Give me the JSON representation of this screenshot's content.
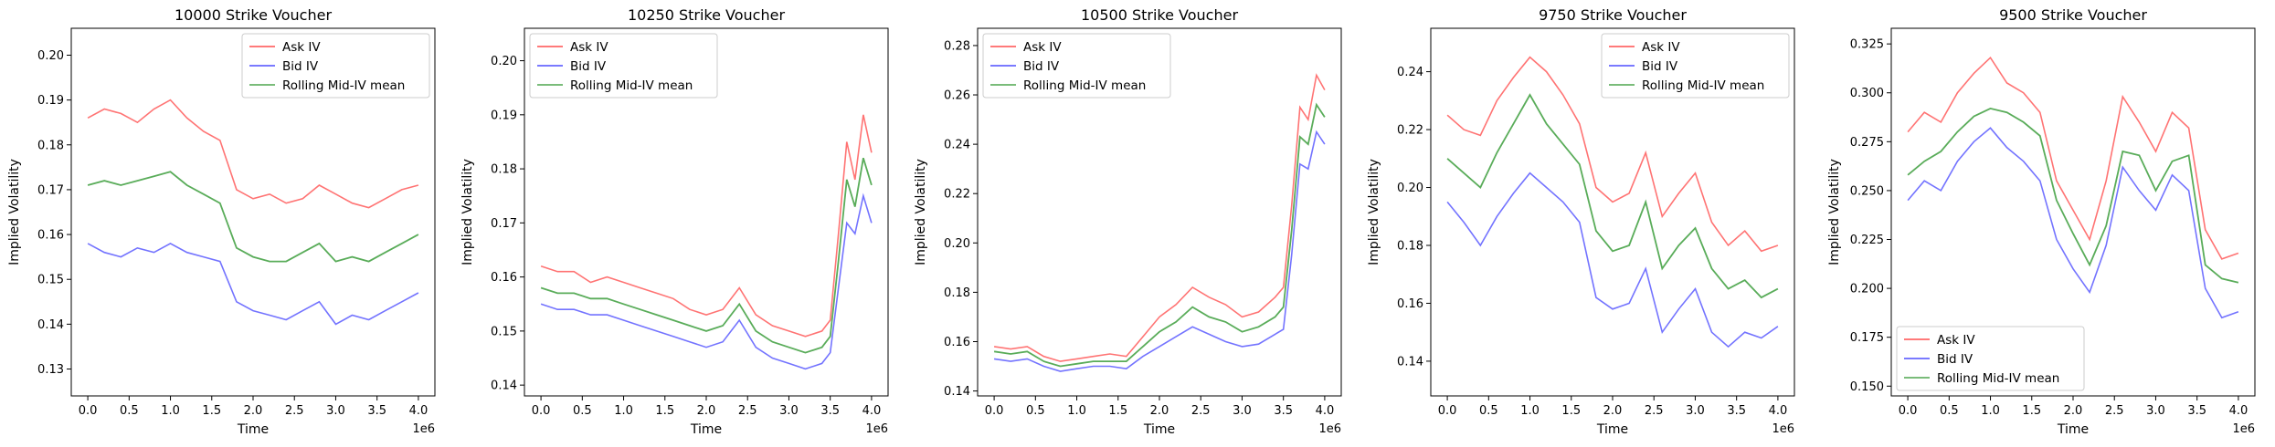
{
  "chart_data": [
    {
      "type": "line",
      "title": "10000 Strike Voucher",
      "xlabel": "Time",
      "ylabel": "Implied Volatility",
      "x_offset_label": "1e6",
      "xlim": [
        -0.2,
        4.2
      ],
      "ylim": [
        0.124,
        0.206
      ],
      "xticks": [
        0.0,
        0.5,
        1.0,
        1.5,
        2.0,
        2.5,
        3.0,
        3.5,
        4.0
      ],
      "xtick_labels": [
        "0.0",
        "0.5",
        "1.0",
        "1.5",
        "2.0",
        "2.5",
        "3.0",
        "3.5",
        "4.0"
      ],
      "yticks": [
        0.13,
        0.14,
        0.15,
        0.16,
        0.17,
        0.18,
        0.19,
        0.2
      ],
      "ytick_labels": [
        "0.13",
        "0.14",
        "0.15",
        "0.16",
        "0.17",
        "0.18",
        "0.19",
        "0.20"
      ],
      "legend_position": "top-right",
      "series": [
        {
          "name": "Ask IV",
          "color": "#ff0000",
          "x": [
            0.0,
            0.2,
            0.4,
            0.6,
            0.8,
            1.0,
            1.2,
            1.4,
            1.6,
            1.8,
            2.0,
            2.2,
            2.4,
            2.6,
            2.8,
            3.0,
            3.2,
            3.4,
            3.6,
            3.8,
            4.0
          ],
          "values": [
            0.186,
            0.188,
            0.187,
            0.185,
            0.188,
            0.19,
            0.186,
            0.183,
            0.181,
            0.17,
            0.168,
            0.169,
            0.167,
            0.168,
            0.171,
            0.169,
            0.167,
            0.166,
            0.168,
            0.17,
            0.171
          ]
        },
        {
          "name": "Bid IV",
          "color": "#0000ff",
          "x": [
            0.0,
            0.2,
            0.4,
            0.6,
            0.8,
            1.0,
            1.2,
            1.4,
            1.6,
            1.8,
            2.0,
            2.2,
            2.4,
            2.6,
            2.8,
            3.0,
            3.2,
            3.4,
            3.6,
            3.8,
            4.0
          ],
          "values": [
            0.158,
            0.156,
            0.155,
            0.157,
            0.156,
            0.158,
            0.156,
            0.155,
            0.154,
            0.145,
            0.143,
            0.142,
            0.141,
            0.143,
            0.145,
            0.14,
            0.142,
            0.141,
            0.143,
            0.145,
            0.147
          ]
        },
        {
          "name": "Rolling Mid-IV mean",
          "color": "#008000",
          "x": [
            0.0,
            0.2,
            0.4,
            0.6,
            0.8,
            1.0,
            1.2,
            1.4,
            1.6,
            1.8,
            2.0,
            2.2,
            2.4,
            2.6,
            2.8,
            3.0,
            3.2,
            3.4,
            3.6,
            3.8,
            4.0
          ],
          "values": [
            0.171,
            0.172,
            0.171,
            0.172,
            0.173,
            0.174,
            0.171,
            0.169,
            0.167,
            0.157,
            0.155,
            0.154,
            0.154,
            0.156,
            0.158,
            0.154,
            0.155,
            0.154,
            0.156,
            0.158,
            0.16
          ]
        }
      ]
    },
    {
      "type": "line",
      "title": "10250 Strike Voucher",
      "xlabel": "Time",
      "ylabel": "Implied Volatility",
      "x_offset_label": "1e6",
      "xlim": [
        -0.2,
        4.2
      ],
      "ylim": [
        0.138,
        0.206
      ],
      "xticks": [
        0.0,
        0.5,
        1.0,
        1.5,
        2.0,
        2.5,
        3.0,
        3.5,
        4.0
      ],
      "xtick_labels": [
        "0.0",
        "0.5",
        "1.0",
        "1.5",
        "2.0",
        "2.5",
        "3.0",
        "3.5",
        "4.0"
      ],
      "yticks": [
        0.14,
        0.15,
        0.16,
        0.17,
        0.18,
        0.19,
        0.2
      ],
      "ytick_labels": [
        "0.14",
        "0.15",
        "0.16",
        "0.17",
        "0.18",
        "0.19",
        "0.20"
      ],
      "legend_position": "top-left",
      "series": [
        {
          "name": "Ask IV",
          "color": "#ff0000",
          "x": [
            0.0,
            0.2,
            0.4,
            0.6,
            0.8,
            1.0,
            1.2,
            1.4,
            1.6,
            1.8,
            2.0,
            2.2,
            2.4,
            2.6,
            2.8,
            3.0,
            3.2,
            3.4,
            3.5,
            3.6,
            3.7,
            3.8,
            3.9,
            4.0
          ],
          "values": [
            0.162,
            0.161,
            0.161,
            0.159,
            0.16,
            0.159,
            0.158,
            0.157,
            0.156,
            0.154,
            0.153,
            0.154,
            0.158,
            0.153,
            0.151,
            0.15,
            0.149,
            0.15,
            0.152,
            0.168,
            0.185,
            0.178,
            0.19,
            0.183
          ]
        },
        {
          "name": "Bid IV",
          "color": "#0000ff",
          "x": [
            0.0,
            0.2,
            0.4,
            0.6,
            0.8,
            1.0,
            1.2,
            1.4,
            1.6,
            1.8,
            2.0,
            2.2,
            2.4,
            2.6,
            2.8,
            3.0,
            3.2,
            3.4,
            3.5,
            3.6,
            3.7,
            3.8,
            3.9,
            4.0
          ],
          "values": [
            0.155,
            0.154,
            0.154,
            0.153,
            0.153,
            0.152,
            0.151,
            0.15,
            0.149,
            0.148,
            0.147,
            0.148,
            0.152,
            0.147,
            0.145,
            0.144,
            0.143,
            0.144,
            0.146,
            0.158,
            0.17,
            0.168,
            0.175,
            0.17
          ]
        },
        {
          "name": "Rolling Mid-IV mean",
          "color": "#008000",
          "x": [
            0.0,
            0.2,
            0.4,
            0.6,
            0.8,
            1.0,
            1.2,
            1.4,
            1.6,
            1.8,
            2.0,
            2.2,
            2.4,
            2.6,
            2.8,
            3.0,
            3.2,
            3.4,
            3.5,
            3.6,
            3.7,
            3.8,
            3.9,
            4.0
          ],
          "values": [
            0.158,
            0.157,
            0.157,
            0.156,
            0.156,
            0.155,
            0.154,
            0.153,
            0.152,
            0.151,
            0.15,
            0.151,
            0.155,
            0.15,
            0.148,
            0.147,
            0.146,
            0.147,
            0.149,
            0.163,
            0.178,
            0.173,
            0.182,
            0.177
          ]
        }
      ]
    },
    {
      "type": "line",
      "title": "10500 Strike Voucher",
      "xlabel": "Time",
      "ylabel": "Implied Volatility",
      "x_offset_label": "1e6",
      "xlim": [
        -0.2,
        4.2
      ],
      "ylim": [
        0.138,
        0.287
      ],
      "xticks": [
        0.0,
        0.5,
        1.0,
        1.5,
        2.0,
        2.5,
        3.0,
        3.5,
        4.0
      ],
      "xtick_labels": [
        "0.0",
        "0.5",
        "1.0",
        "1.5",
        "2.0",
        "2.5",
        "3.0",
        "3.5",
        "4.0"
      ],
      "yticks": [
        0.14,
        0.16,
        0.18,
        0.2,
        0.22,
        0.24,
        0.26,
        0.28
      ],
      "ytick_labels": [
        "0.14",
        "0.16",
        "0.18",
        "0.20",
        "0.22",
        "0.24",
        "0.26",
        "0.28"
      ],
      "legend_position": "top-left",
      "series": [
        {
          "name": "Ask IV",
          "color": "#ff0000",
          "x": [
            0.0,
            0.2,
            0.4,
            0.6,
            0.8,
            1.0,
            1.2,
            1.4,
            1.6,
            1.8,
            2.0,
            2.2,
            2.4,
            2.6,
            2.8,
            3.0,
            3.2,
            3.4,
            3.5,
            3.6,
            3.7,
            3.8,
            3.9,
            4.0
          ],
          "values": [
            0.158,
            0.157,
            0.158,
            0.154,
            0.152,
            0.153,
            0.154,
            0.155,
            0.154,
            0.162,
            0.17,
            0.175,
            0.182,
            0.178,
            0.175,
            0.17,
            0.172,
            0.178,
            0.182,
            0.215,
            0.255,
            0.25,
            0.268,
            0.262
          ]
        },
        {
          "name": "Bid IV",
          "color": "#0000ff",
          "x": [
            0.0,
            0.2,
            0.4,
            0.6,
            0.8,
            1.0,
            1.2,
            1.4,
            1.6,
            1.8,
            2.0,
            2.2,
            2.4,
            2.6,
            2.8,
            3.0,
            3.2,
            3.4,
            3.5,
            3.6,
            3.7,
            3.8,
            3.9,
            4.0
          ],
          "values": [
            0.153,
            0.152,
            0.153,
            0.15,
            0.148,
            0.149,
            0.15,
            0.15,
            0.149,
            0.154,
            0.158,
            0.162,
            0.166,
            0.163,
            0.16,
            0.158,
            0.159,
            0.163,
            0.165,
            0.195,
            0.232,
            0.23,
            0.245,
            0.24
          ]
        },
        {
          "name": "Rolling Mid-IV mean",
          "color": "#008000",
          "x": [
            0.0,
            0.2,
            0.4,
            0.6,
            0.8,
            1.0,
            1.2,
            1.4,
            1.6,
            1.8,
            2.0,
            2.2,
            2.4,
            2.6,
            2.8,
            3.0,
            3.2,
            3.4,
            3.5,
            3.6,
            3.7,
            3.8,
            3.9,
            4.0
          ],
          "values": [
            0.156,
            0.155,
            0.156,
            0.152,
            0.15,
            0.151,
            0.152,
            0.152,
            0.152,
            0.158,
            0.164,
            0.168,
            0.174,
            0.17,
            0.168,
            0.164,
            0.166,
            0.17,
            0.174,
            0.205,
            0.243,
            0.24,
            0.256,
            0.251
          ]
        }
      ]
    },
    {
      "type": "line",
      "title": "9750 Strike Voucher",
      "xlabel": "Time",
      "ylabel": "Implied Volatility",
      "x_offset_label": "1e6",
      "xlim": [
        -0.2,
        4.2
      ],
      "ylim": [
        0.128,
        0.255
      ],
      "xticks": [
        0.0,
        0.5,
        1.0,
        1.5,
        2.0,
        2.5,
        3.0,
        3.5,
        4.0
      ],
      "xtick_labels": [
        "0.0",
        "0.5",
        "1.0",
        "1.5",
        "2.0",
        "2.5",
        "3.0",
        "3.5",
        "4.0"
      ],
      "yticks": [
        0.14,
        0.16,
        0.18,
        0.2,
        0.22,
        0.24
      ],
      "ytick_labels": [
        "0.14",
        "0.16",
        "0.18",
        "0.20",
        "0.22",
        "0.24"
      ],
      "legend_position": "top-right",
      "series": [
        {
          "name": "Ask IV",
          "color": "#ff0000",
          "x": [
            0.0,
            0.2,
            0.4,
            0.6,
            0.8,
            1.0,
            1.2,
            1.4,
            1.6,
            1.8,
            2.0,
            2.2,
            2.4,
            2.6,
            2.8,
            3.0,
            3.2,
            3.4,
            3.6,
            3.8,
            4.0
          ],
          "values": [
            0.225,
            0.22,
            0.218,
            0.23,
            0.238,
            0.245,
            0.24,
            0.232,
            0.222,
            0.2,
            0.195,
            0.198,
            0.212,
            0.19,
            0.198,
            0.205,
            0.188,
            0.18,
            0.185,
            0.178,
            0.18
          ]
        },
        {
          "name": "Bid IV",
          "color": "#0000ff",
          "x": [
            0.0,
            0.2,
            0.4,
            0.6,
            0.8,
            1.0,
            1.2,
            1.4,
            1.6,
            1.8,
            2.0,
            2.2,
            2.4,
            2.6,
            2.8,
            3.0,
            3.2,
            3.4,
            3.6,
            3.8,
            4.0
          ],
          "values": [
            0.195,
            0.188,
            0.18,
            0.19,
            0.198,
            0.205,
            0.2,
            0.195,
            0.188,
            0.162,
            0.158,
            0.16,
            0.172,
            0.15,
            0.158,
            0.165,
            0.15,
            0.145,
            0.15,
            0.148,
            0.152
          ]
        },
        {
          "name": "Rolling Mid-IV mean",
          "color": "#008000",
          "x": [
            0.0,
            0.2,
            0.4,
            0.6,
            0.8,
            1.0,
            1.2,
            1.4,
            1.6,
            1.8,
            2.0,
            2.2,
            2.4,
            2.6,
            2.8,
            3.0,
            3.2,
            3.4,
            3.6,
            3.8,
            4.0
          ],
          "values": [
            0.21,
            0.205,
            0.2,
            0.212,
            0.222,
            0.232,
            0.222,
            0.215,
            0.208,
            0.185,
            0.178,
            0.18,
            0.195,
            0.172,
            0.18,
            0.186,
            0.172,
            0.165,
            0.168,
            0.162,
            0.165
          ]
        }
      ]
    },
    {
      "type": "line",
      "title": "9500 Strike Voucher",
      "xlabel": "Time",
      "ylabel": "Implied Volatility",
      "x_offset_label": "1e6",
      "xlim": [
        -0.2,
        4.2
      ],
      "ylim": [
        0.145,
        0.333
      ],
      "xticks": [
        0.0,
        0.5,
        1.0,
        1.5,
        2.0,
        2.5,
        3.0,
        3.5,
        4.0
      ],
      "xtick_labels": [
        "0.0",
        "0.5",
        "1.0",
        "1.5",
        "2.0",
        "2.5",
        "3.0",
        "3.5",
        "4.0"
      ],
      "yticks": [
        0.15,
        0.175,
        0.2,
        0.225,
        0.25,
        0.275,
        0.3,
        0.325
      ],
      "ytick_labels": [
        "0.150",
        "0.175",
        "0.200",
        "0.225",
        "0.250",
        "0.275",
        "0.300",
        "0.325"
      ],
      "legend_position": "bottom-left",
      "series": [
        {
          "name": "Ask IV",
          "color": "#ff0000",
          "x": [
            0.0,
            0.2,
            0.4,
            0.6,
            0.8,
            1.0,
            1.2,
            1.4,
            1.6,
            1.8,
            2.0,
            2.2,
            2.4,
            2.6,
            2.8,
            3.0,
            3.2,
            3.4,
            3.6,
            3.8,
            4.0
          ],
          "values": [
            0.28,
            0.29,
            0.285,
            0.3,
            0.31,
            0.318,
            0.305,
            0.3,
            0.29,
            0.255,
            0.24,
            0.225,
            0.255,
            0.298,
            0.285,
            0.27,
            0.29,
            0.282,
            0.23,
            0.215,
            0.218
          ]
        },
        {
          "name": "Bid IV",
          "color": "#0000ff",
          "x": [
            0.0,
            0.2,
            0.4,
            0.6,
            0.8,
            1.0,
            1.2,
            1.4,
            1.6,
            1.8,
            2.0,
            2.2,
            2.4,
            2.6,
            2.8,
            3.0,
            3.2,
            3.4,
            3.6,
            3.8,
            4.0
          ],
          "values": [
            0.245,
            0.255,
            0.25,
            0.265,
            0.275,
            0.282,
            0.272,
            0.265,
            0.255,
            0.225,
            0.21,
            0.198,
            0.222,
            0.262,
            0.25,
            0.24,
            0.258,
            0.25,
            0.2,
            0.185,
            0.188
          ]
        },
        {
          "name": "Rolling Mid-IV mean",
          "color": "#008000",
          "x": [
            0.0,
            0.2,
            0.4,
            0.6,
            0.8,
            1.0,
            1.2,
            1.4,
            1.6,
            1.8,
            2.0,
            2.2,
            2.4,
            2.6,
            2.8,
            3.0,
            3.2,
            3.4,
            3.6,
            3.8,
            4.0
          ],
          "values": [
            0.258,
            0.265,
            0.27,
            0.28,
            0.288,
            0.292,
            0.29,
            0.285,
            0.278,
            0.245,
            0.228,
            0.212,
            0.232,
            0.27,
            0.268,
            0.25,
            0.265,
            0.268,
            0.212,
            0.205,
            0.203
          ]
        }
      ]
    }
  ]
}
